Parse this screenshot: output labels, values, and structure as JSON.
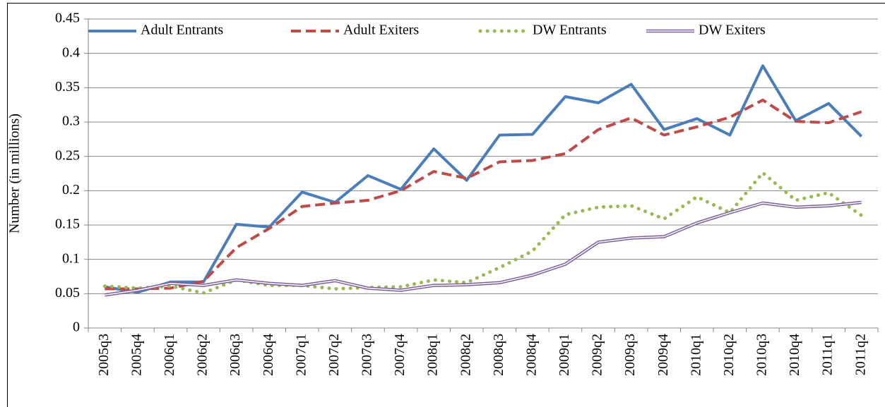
{
  "chart_data": {
    "type": "line",
    "y_label": "Number (in millions)",
    "categories": [
      "2005q3",
      "2005q4",
      "2006q1",
      "2006q2",
      "2006q3",
      "2006q4",
      "2007q1",
      "2007q2",
      "2007q3",
      "2007q4",
      "2008q1",
      "2008q2",
      "2008q3",
      "2008q4",
      "2009q1",
      "2009q2",
      "2009q3",
      "2009q4",
      "2010q1",
      "2010q2",
      "2010q3",
      "2010q4",
      "2011q1",
      "2011q2"
    ],
    "series": [
      {
        "name": "Adult Entrants",
        "color": "#4a7ebb",
        "dash": "solid",
        "values": [
          0.06,
          0.052,
          0.067,
          0.067,
          0.151,
          0.147,
          0.198,
          0.183,
          0.222,
          0.202,
          0.261,
          0.215,
          0.281,
          0.282,
          0.337,
          0.328,
          0.355,
          0.289,
          0.305,
          0.281,
          0.382,
          0.302,
          0.327,
          0.279
        ]
      },
      {
        "name": "Adult Exiters",
        "color": "#be4b48",
        "dash": "dashed",
        "values": [
          0.057,
          0.057,
          0.058,
          0.068,
          0.117,
          0.145,
          0.177,
          0.182,
          0.186,
          0.2,
          0.228,
          0.218,
          0.242,
          0.244,
          0.254,
          0.289,
          0.306,
          0.281,
          0.293,
          0.307,
          0.332,
          0.301,
          0.299,
          0.315
        ]
      },
      {
        "name": "DW Entrants",
        "color": "#98b954",
        "dash": "dotted",
        "values": [
          0.061,
          0.058,
          0.061,
          0.051,
          0.07,
          0.062,
          0.062,
          0.057,
          0.059,
          0.06,
          0.07,
          0.066,
          0.088,
          0.112,
          0.165,
          0.176,
          0.178,
          0.159,
          0.191,
          0.168,
          0.226,
          0.186,
          0.197,
          0.164
        ]
      },
      {
        "name": "DW Exiters",
        "color": "#7d5fa0",
        "dash": "double",
        "values": [
          0.048,
          0.055,
          0.065,
          0.062,
          0.07,
          0.065,
          0.062,
          0.069,
          0.058,
          0.055,
          0.062,
          0.063,
          0.066,
          0.077,
          0.093,
          0.125,
          0.131,
          0.133,
          0.153,
          0.168,
          0.182,
          0.176,
          0.178,
          0.183
        ]
      }
    ],
    "ylim": [
      0,
      0.45
    ],
    "yticks": [
      0,
      0.05,
      0.1,
      0.15,
      0.2,
      0.25,
      0.3,
      0.35,
      0.4,
      0.45
    ],
    "grid": true,
    "legend": "top"
  }
}
